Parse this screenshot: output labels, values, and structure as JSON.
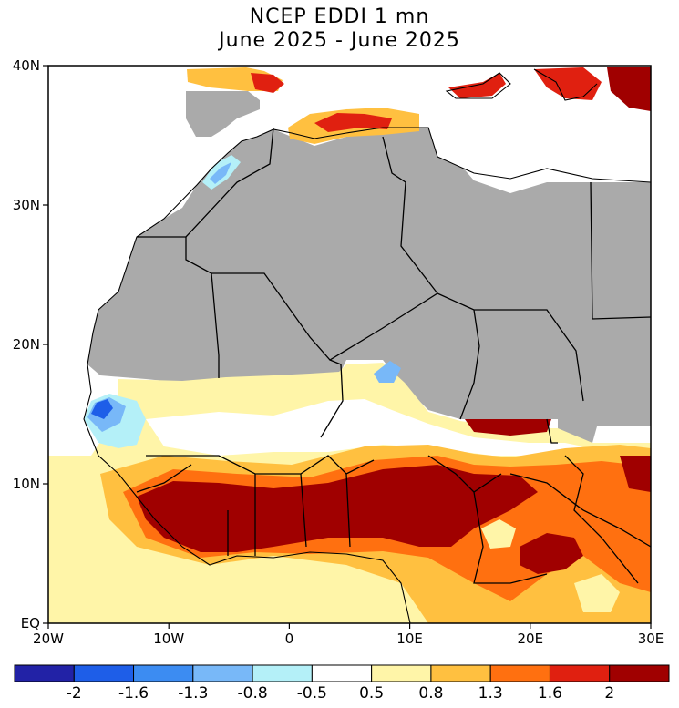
{
  "title": {
    "line1": "NCEP EDDI 1 mn",
    "line2": "June 2025 - June 2025"
  },
  "map": {
    "lon_range": [
      -20,
      30
    ],
    "lat_range": [
      0,
      40
    ],
    "lat_labels": [
      {
        "lat": 40,
        "label": "40N"
      },
      {
        "lat": 30,
        "label": "30N"
      },
      {
        "lat": 20,
        "label": "20N"
      },
      {
        "lat": 10,
        "label": "10N"
      },
      {
        "lat": 0,
        "label": "EQ"
      }
    ],
    "lon_labels": [
      {
        "lon": -20,
        "label": "20W"
      },
      {
        "lon": -10,
        "label": "10W"
      },
      {
        "lon": 0,
        "label": "0"
      },
      {
        "lon": 10,
        "label": "10E"
      },
      {
        "lon": 20,
        "label": "20E"
      },
      {
        "lon": 30,
        "label": "30E"
      }
    ],
    "masked_color": "#aaaaaa",
    "ocean_color": "#ffffff"
  },
  "colorbar": {
    "colors": [
      "#2222a6",
      "#1e5ee8",
      "#3c8cf2",
      "#78b8f8",
      "#b4f0f8",
      "#ffffff",
      "#fff5a8",
      "#ffc040",
      "#ff7010",
      "#e02010",
      "#a00000"
    ],
    "labels": [
      "-2",
      "-1.6",
      "-1.3",
      "-0.8",
      "-0.5",
      "0.5",
      "0.8",
      "1.3",
      "1.6",
      "2"
    ]
  }
}
